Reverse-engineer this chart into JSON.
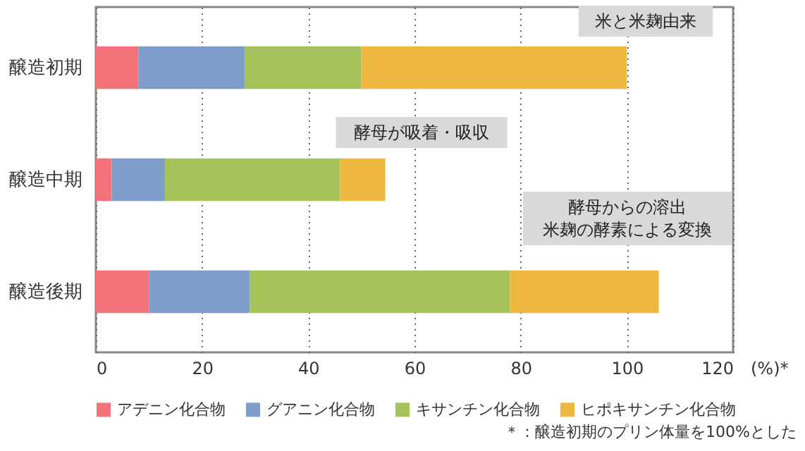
{
  "chart_data": {
    "type": "bar",
    "orientation": "horizontal",
    "stacked": true,
    "xlabel": "(%)*",
    "categories": [
      "醸造初期",
      "醸造中期",
      "醸造後期"
    ],
    "series": [
      {
        "name": "アデニン化合物",
        "color": "#f4737a",
        "values": [
          8,
          3,
          10
        ]
      },
      {
        "name": "グアニン化合物",
        "color": "#7f9dcb",
        "values": [
          20,
          10,
          19
        ]
      },
      {
        "name": "キサンチン化合物",
        "color": "#a5c35a",
        "values": [
          22,
          33,
          49
        ]
      },
      {
        "name": "ヒポキサンチン化合物",
        "color": "#edb740",
        "values": [
          50,
          8.5,
          28
        ]
      }
    ],
    "xlim": [
      0,
      120
    ],
    "xticks": [
      0,
      20,
      40,
      60,
      80,
      100,
      120
    ],
    "grid": "x",
    "legend": "bottom",
    "annotations": [
      "米と米麹由来",
      "酵母が吸着・吸収",
      "酵母からの溶出",
      "米麹の酵素による変換",
      "＊：醸造初期のプリン体量を100%とした"
    ]
  }
}
